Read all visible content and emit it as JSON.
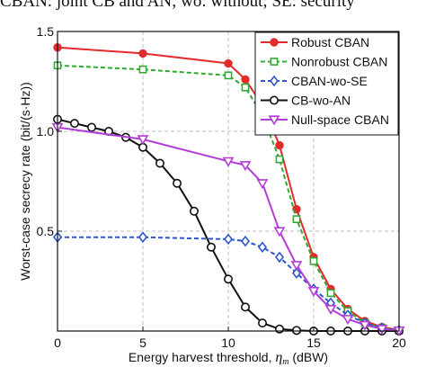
{
  "caption": "CBAN: joint CB and AN; wo: without; SE: security",
  "chart_data": {
    "type": "line",
    "xlabel_prefix": "Energy harvest threshold, ",
    "xlabel_symbol": "η",
    "xlabel_subscript": "m",
    "xlabel_suffix": " (dBW)",
    "ylabel": "Worst-case secrecy rate (bit/(s·Hz))",
    "xlim": [
      0,
      20
    ],
    "ylim": [
      0,
      1.5
    ],
    "xticks": [
      "0",
      "5",
      "10",
      "15",
      "20"
    ],
    "yticks": [
      "0.5",
      "1.0",
      "1.5"
    ],
    "grid": true,
    "legend_position": "top-right",
    "series": [
      {
        "name": "Robust CBAN",
        "color": "#e32b2b",
        "dash": "solid",
        "marker": "circle-filled",
        "x": [
          0,
          5,
          10,
          11,
          12,
          13,
          14,
          15,
          16,
          17,
          18,
          19,
          20
        ],
        "y": [
          1.42,
          1.39,
          1.34,
          1.26,
          1.13,
          0.93,
          0.61,
          0.37,
          0.21,
          0.11,
          0.05,
          0.02,
          0.005
        ]
      },
      {
        "name": "Nonrobust CBAN",
        "color": "#34a834",
        "dash": "dashed",
        "marker": "square",
        "x": [
          0,
          5,
          10,
          11,
          12,
          13,
          14,
          15,
          16,
          17,
          18,
          19,
          20
        ],
        "y": [
          1.33,
          1.31,
          1.28,
          1.22,
          1.08,
          0.86,
          0.56,
          0.35,
          0.19,
          0.1,
          0.04,
          0.015,
          0.003
        ]
      },
      {
        "name": "CBAN-wo-SE",
        "color": "#2f56c8",
        "dash": "dashed",
        "marker": "diamond",
        "x": [
          0,
          5,
          10,
          11,
          12,
          13,
          14,
          15,
          16,
          17,
          18,
          19,
          20
        ],
        "y": [
          0.47,
          0.47,
          0.46,
          0.45,
          0.42,
          0.37,
          0.29,
          0.21,
          0.14,
          0.08,
          0.04,
          0.015,
          0.003
        ]
      },
      {
        "name": "CB-wo-AN",
        "color": "#111111",
        "dash": "solid",
        "marker": "circle-open",
        "x": [
          0,
          1,
          2,
          3,
          4,
          5,
          6,
          7,
          8,
          9,
          10,
          11,
          12,
          13,
          14,
          15,
          16,
          17,
          18,
          19,
          20
        ],
        "y": [
          1.06,
          1.04,
          1.02,
          1.0,
          0.97,
          0.92,
          0.84,
          0.74,
          0.6,
          0.42,
          0.26,
          0.12,
          0.04,
          0.01,
          0.003,
          0.0,
          0.0,
          0.0,
          0.0,
          0.0,
          0.0
        ]
      },
      {
        "name": "Null-space CBAN",
        "color": "#b43cd6",
        "dash": "solid",
        "marker": "triangle-down",
        "x": [
          0,
          5,
          10,
          11,
          12,
          13,
          14,
          15,
          16,
          17,
          18,
          19,
          20
        ],
        "y": [
          1.02,
          0.96,
          0.85,
          0.83,
          0.74,
          0.5,
          0.33,
          0.2,
          0.11,
          0.06,
          0.03,
          0.01,
          0.002
        ]
      }
    ]
  }
}
